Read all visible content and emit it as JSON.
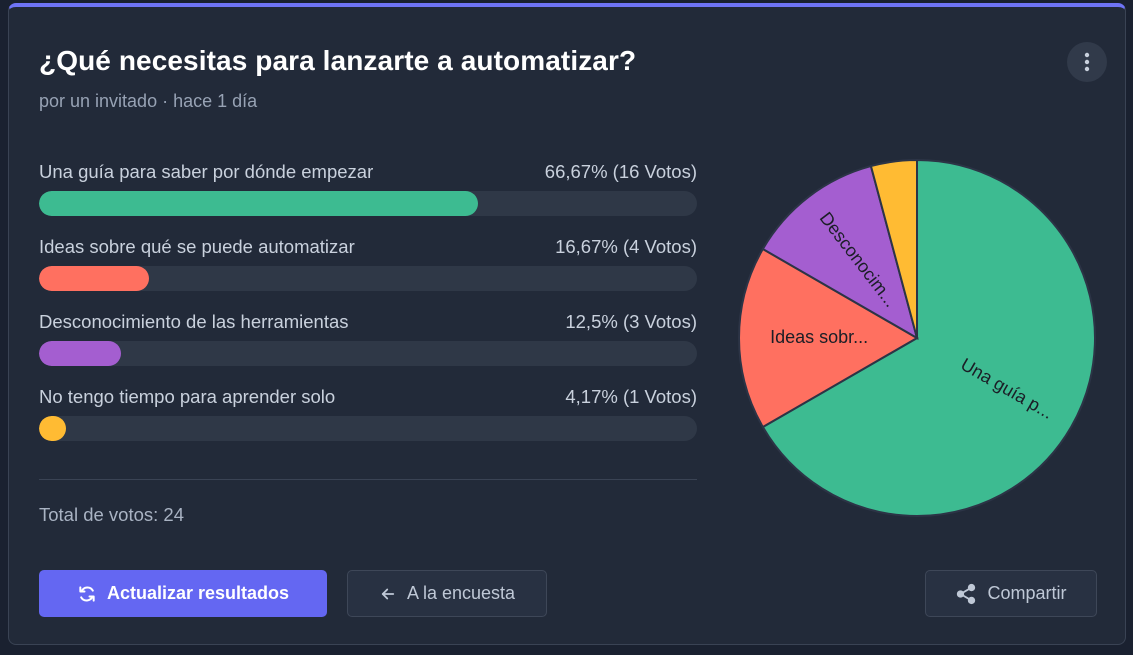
{
  "poll": {
    "title": "¿Qué necesitas para lanzarte a automatizar?",
    "subtitle": "por un invitado · hace 1 día",
    "total_label": "Total de votos: 24"
  },
  "options": [
    {
      "label": "Una guía para saber por dónde empezar",
      "result": "66,67% (16 Votos)",
      "percent": 66.67,
      "color": "#3dbb91"
    },
    {
      "label": "Ideas sobre qué se puede automatizar",
      "result": "16,67% (4 Votos)",
      "percent": 16.67,
      "color": "#ff7060"
    },
    {
      "label": "Desconocimiento de las herramientas",
      "result": "12,5% (3 Votos)",
      "percent": 12.5,
      "color": "#a45ed0"
    },
    {
      "label": "No tengo tiempo para aprender solo",
      "result": "4,17% (1 Votos)",
      "percent": 4.17,
      "color": "#ffbb33"
    }
  ],
  "buttons": {
    "refresh_label": "Actualizar resultados",
    "back_label": "A la encuesta",
    "share_label": "Compartir"
  },
  "icons": {
    "menu": "more-vertical-icon",
    "refresh": "refresh-icon",
    "back": "arrow-left-icon",
    "share": "share-icon"
  },
  "chart_data": {
    "type": "pie",
    "categories": [
      "Una guía p...",
      "Ideas sobr...",
      "Desconocim...",
      ""
    ],
    "values": [
      16,
      4,
      3,
      1
    ],
    "colors": [
      "#3dbb91",
      "#ff7060",
      "#a45ed0",
      "#ffbb33"
    ]
  }
}
